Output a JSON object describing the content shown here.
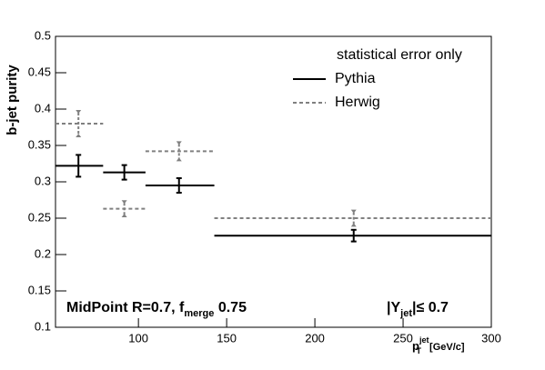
{
  "chart_data": {
    "type": "errorbar",
    "ylabel": "b-jet purity",
    "xlabel": {
      "base": "p",
      "sup": "jet",
      "sub": "T",
      "unit": " [GeV/c]"
    },
    "bins": [
      53,
      80,
      104,
      143,
      300
    ],
    "x": [
      66,
      92,
      123,
      222
    ],
    "series": [
      {
        "name": "Pythia",
        "color": "#000000",
        "dashed": false,
        "values": [
          0.322,
          0.313,
          0.295,
          0.226
        ],
        "errors": [
          0.015,
          0.01,
          0.01,
          0.008
        ]
      },
      {
        "name": "Herwig",
        "color": "#808080",
        "dashed": true,
        "values": [
          0.38,
          0.263,
          0.342,
          0.25
        ],
        "errors": [
          0.015,
          0.008,
          0.01,
          0.008
        ]
      }
    ],
    "legend_title": "statistical error only",
    "annotations": [
      {
        "text": "MidPoint R=0.7, f",
        "sub": "merge",
        "after": " 0.75"
      },
      {
        "text": "|Y",
        "sub": "jet",
        "after": "|≤ 0.7"
      }
    ],
    "xlim": [
      53,
      300
    ],
    "ylim": [
      0.1,
      0.5
    ],
    "xticks": [
      100,
      150,
      200,
      250,
      300
    ],
    "yticks": [
      0.1,
      0.15,
      0.2,
      0.25,
      0.3,
      0.35,
      0.4,
      0.45,
      0.5
    ]
  }
}
